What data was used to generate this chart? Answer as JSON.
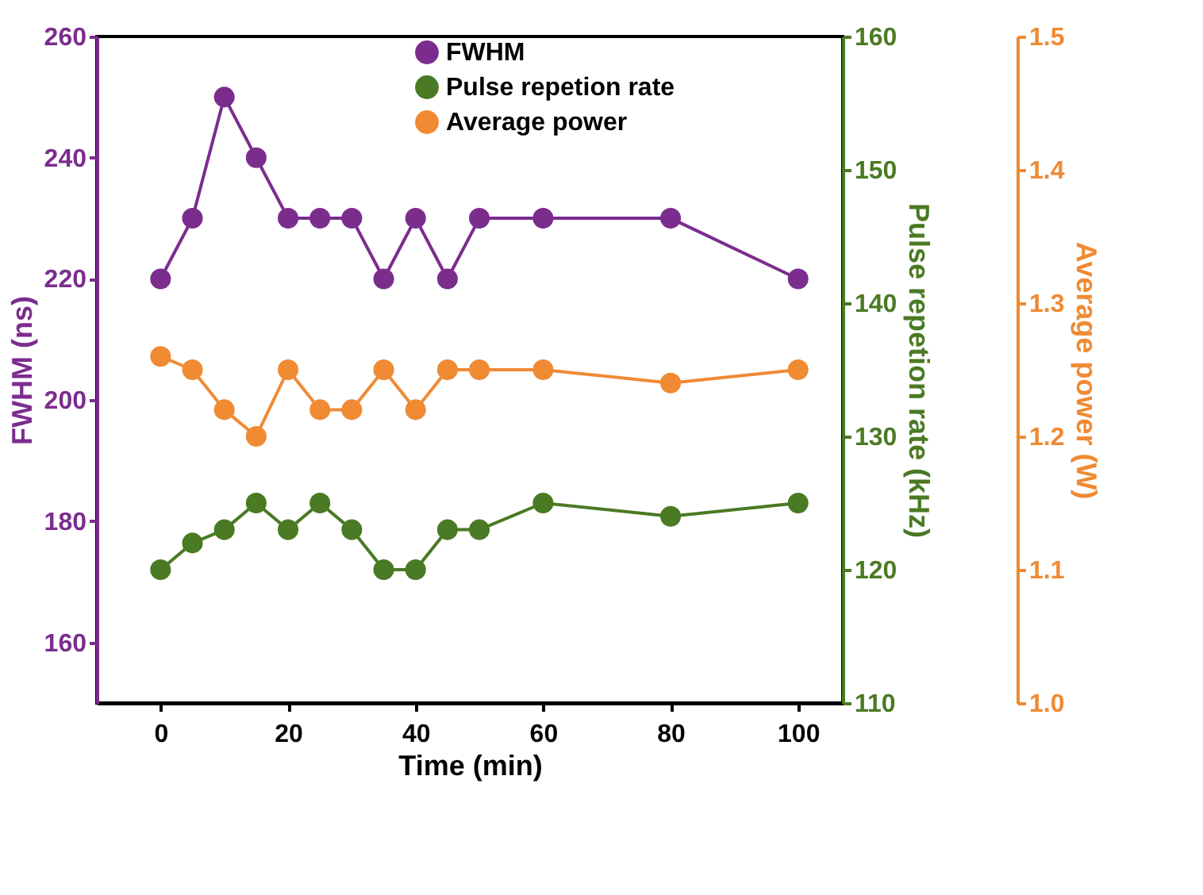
{
  "chart_data": {
    "type": "line",
    "xlabel": "Time (min)",
    "ylabel": "FWHM (ns)",
    "y2label": "Pulse repetion rate (kHz)",
    "y3label": "Average power (W)",
    "x": [
      0,
      5,
      10,
      15,
      20,
      25,
      30,
      35,
      40,
      45,
      50,
      60,
      80,
      100
    ],
    "xlim": [
      -10,
      107
    ],
    "xticks": [
      0,
      20,
      40,
      60,
      80,
      100
    ],
    "ylim": [
      150,
      260
    ],
    "yticks": [
      160,
      180,
      200,
      220,
      240,
      260
    ],
    "y2lim": [
      110,
      160
    ],
    "y2ticks": [
      110,
      120,
      130,
      140,
      150,
      160
    ],
    "y3lim": [
      1.0,
      1.5
    ],
    "y3ticks": [
      {
        "value": 1.0,
        "label": "1.0"
      },
      1.1,
      1.2,
      1.3,
      1.4,
      1.5
    ],
    "marker": "circle",
    "line_style": "solid",
    "grid": false,
    "legend": "top",
    "series": [
      {
        "name": "FWHM",
        "color": "#7b2d8e",
        "axis": "y",
        "values": [
          220,
          230,
          250,
          240,
          230,
          230,
          230,
          220,
          230,
          220,
          230,
          230,
          230,
          220
        ]
      },
      {
        "name": "Pulse repetion rate",
        "color": "#4a7a23",
        "axis": "y2",
        "values": [
          120,
          122,
          123,
          125,
          123,
          125,
          123,
          120,
          120,
          123,
          123,
          125,
          124,
          125
        ]
      },
      {
        "name": "Average power",
        "color": "#f08a33",
        "axis": "y3",
        "values": [
          1.26,
          1.25,
          1.22,
          1.2,
          1.25,
          1.22,
          1.22,
          1.25,
          1.22,
          1.25,
          1.25,
          1.25,
          1.24,
          1.25
        ]
      }
    ]
  }
}
